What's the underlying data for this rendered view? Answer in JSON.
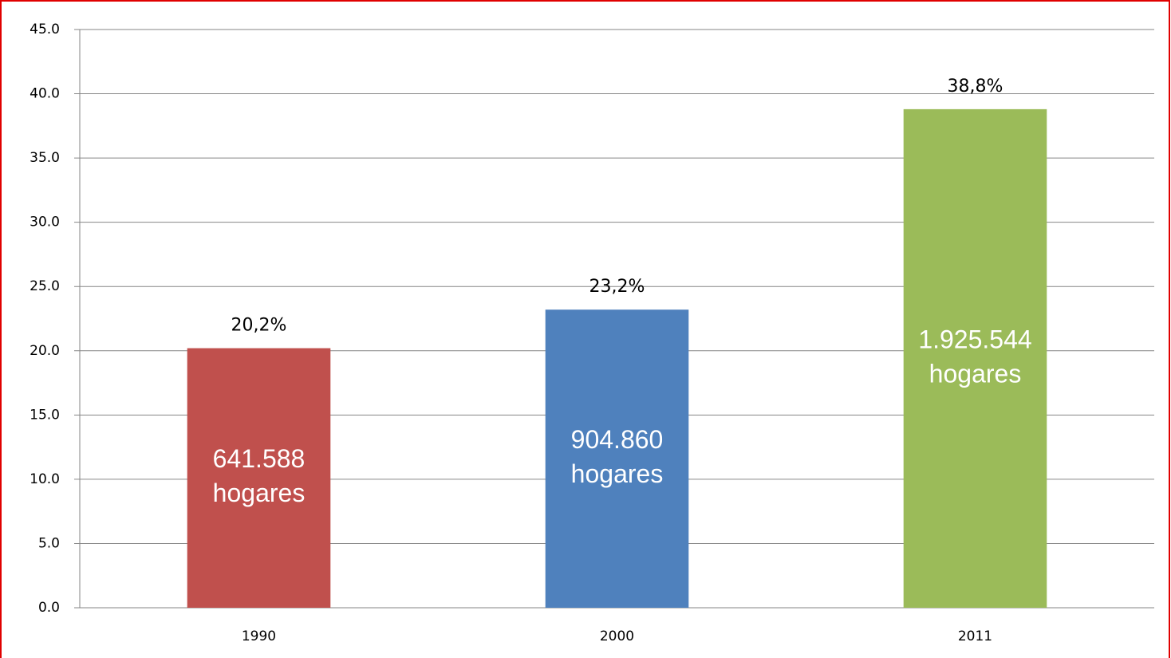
{
  "chart_data": {
    "type": "bar",
    "categories": [
      "1990",
      "2000",
      "2011"
    ],
    "values": [
      20.2,
      23.2,
      38.8
    ],
    "value_labels": [
      "20,2%",
      "23,2%",
      "38,8%"
    ],
    "colors": [
      "#c0504d",
      "#4f81bd",
      "#9bbb59"
    ],
    "inner_labels": [
      [
        "641.588",
        "hogares"
      ],
      [
        "904.860",
        "hogares"
      ],
      [
        "1.925.544",
        "hogares"
      ]
    ],
    "ylim": [
      0,
      45
    ],
    "yticks": [
      {
        "value": 0,
        "label": "0.0"
      },
      {
        "value": 5,
        "label": "5.0"
      },
      {
        "value": 10,
        "label": "10.0"
      },
      {
        "value": 15,
        "label": "15.0"
      },
      {
        "value": 20,
        "label": "20.0"
      },
      {
        "value": 25,
        "label": "25.0"
      },
      {
        "value": 30,
        "label": "30.0"
      },
      {
        "value": 35,
        "label": "35.0"
      },
      {
        "value": 40,
        "label": "40.0"
      },
      {
        "value": 45,
        "label": "45.0"
      }
    ],
    "grid": true
  }
}
